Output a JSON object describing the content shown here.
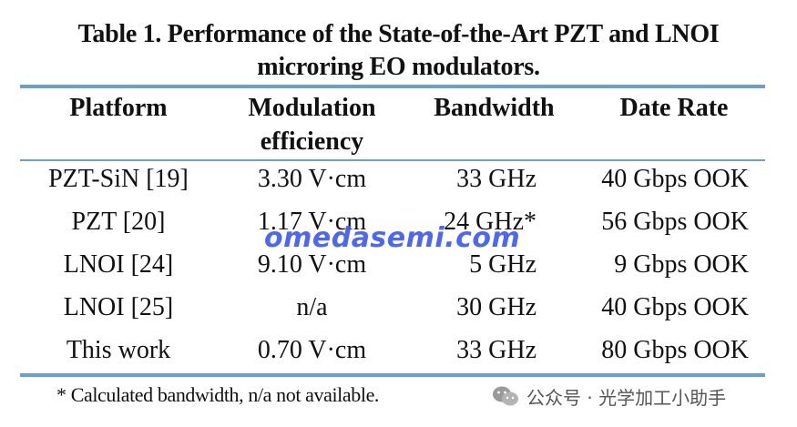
{
  "caption": {
    "line1": "Table 1.  Performance of the State-of-the-Art PZT and LNOI",
    "line2": "microring EO modulators."
  },
  "table": {
    "headers": [
      [
        "Platform"
      ],
      [
        "Modulation",
        "efficiency"
      ],
      [
        "Bandwidth"
      ],
      [
        "Date Rate"
      ]
    ],
    "rows": [
      [
        "PZT-SiN [19]",
        "3.30 V·cm",
        "33 GHz",
        "40 Gbps OOK"
      ],
      [
        "PZT [20]",
        "1.17 V·cm",
        "24 GHz*",
        "56 Gbps OOK"
      ],
      [
        "LNOI [24]",
        "9.10 V·cm",
        "5 GHz",
        "9 Gbps OOK"
      ],
      [
        "LNOI [25]",
        "n/a",
        "30 GHz",
        "40 Gbps OOK"
      ],
      [
        "This work",
        "0.70 V·cm",
        "33 GHz",
        "80 Gbps OOK"
      ]
    ]
  },
  "footnote": "* Calculated bandwidth, n/a not available.",
  "watermark": "omedasemi.com",
  "wechat": {
    "icon": "wechat-icon",
    "label": "公众号 · 光学加工小助手"
  },
  "colors": {
    "rule": "#6a9ed1",
    "watermark": "#3d5cf0"
  }
}
